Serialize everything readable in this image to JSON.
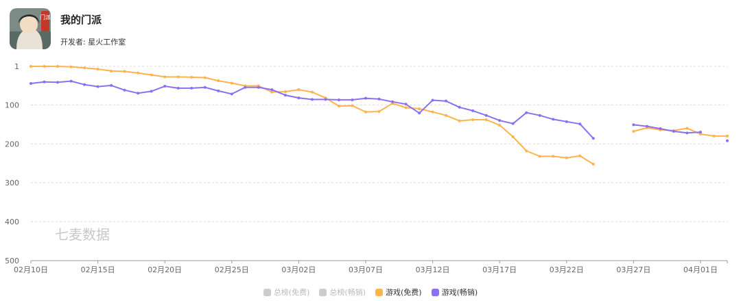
{
  "app": {
    "name": "我的门派",
    "developer_label": "开发者:",
    "developer": "星火工作室",
    "icon_text": "门派"
  },
  "watermark": "七麦数据",
  "colors": {
    "free": "#ffb34d",
    "grossing": "#8a70f0",
    "inactive": "#cccccc",
    "grid": "#d9d9d9",
    "axis": "#666666"
  },
  "chart_data": {
    "type": "line",
    "y_inverted": true,
    "ylim": [
      1,
      500
    ],
    "yticks": [
      1,
      100,
      200,
      300,
      400,
      500
    ],
    "x_start": "02月10日",
    "x_end": "04月02日",
    "xticks": [
      "02月10日",
      "02月15日",
      "02月20日",
      "02月25日",
      "03月02日",
      "03月07日",
      "03月12日",
      "03月17日",
      "03月22日",
      "03月27日",
      "04月01日"
    ],
    "legend": [
      {
        "name": "总榜(免费)",
        "active": false
      },
      {
        "name": "总榜(畅销)",
        "active": false
      },
      {
        "name": "游戏(免费)",
        "active": true
      },
      {
        "name": "游戏(畅销)",
        "active": true
      }
    ],
    "series": [
      {
        "name": "游戏(免费)",
        "values": [
          1,
          1,
          1,
          2,
          5,
          8,
          13,
          14,
          18,
          23,
          28,
          28,
          29,
          30,
          38,
          44,
          51,
          51,
          67,
          66,
          61,
          67,
          82,
          103,
          102,
          118,
          117,
          96,
          107,
          110,
          118,
          127,
          141,
          138,
          138,
          152,
          182,
          218,
          232,
          232,
          236,
          231,
          252,
          null,
          null,
          168,
          159,
          164,
          166,
          160,
          175,
          180,
          180
        ]
      },
      {
        "name": "游戏(畅销)",
        "values": [
          45,
          41,
          42,
          39,
          48,
          53,
          50,
          62,
          70,
          65,
          52,
          57,
          57,
          55,
          64,
          72,
          55,
          55,
          61,
          75,
          82,
          86,
          86,
          87,
          87,
          83,
          85,
          92,
          98,
          121,
          88,
          90,
          106,
          115,
          127,
          140,
          148,
          120,
          127,
          137,
          143,
          149,
          186,
          null,
          null,
          151,
          155,
          161,
          168,
          172,
          170,
          null,
          192
        ]
      }
    ]
  }
}
